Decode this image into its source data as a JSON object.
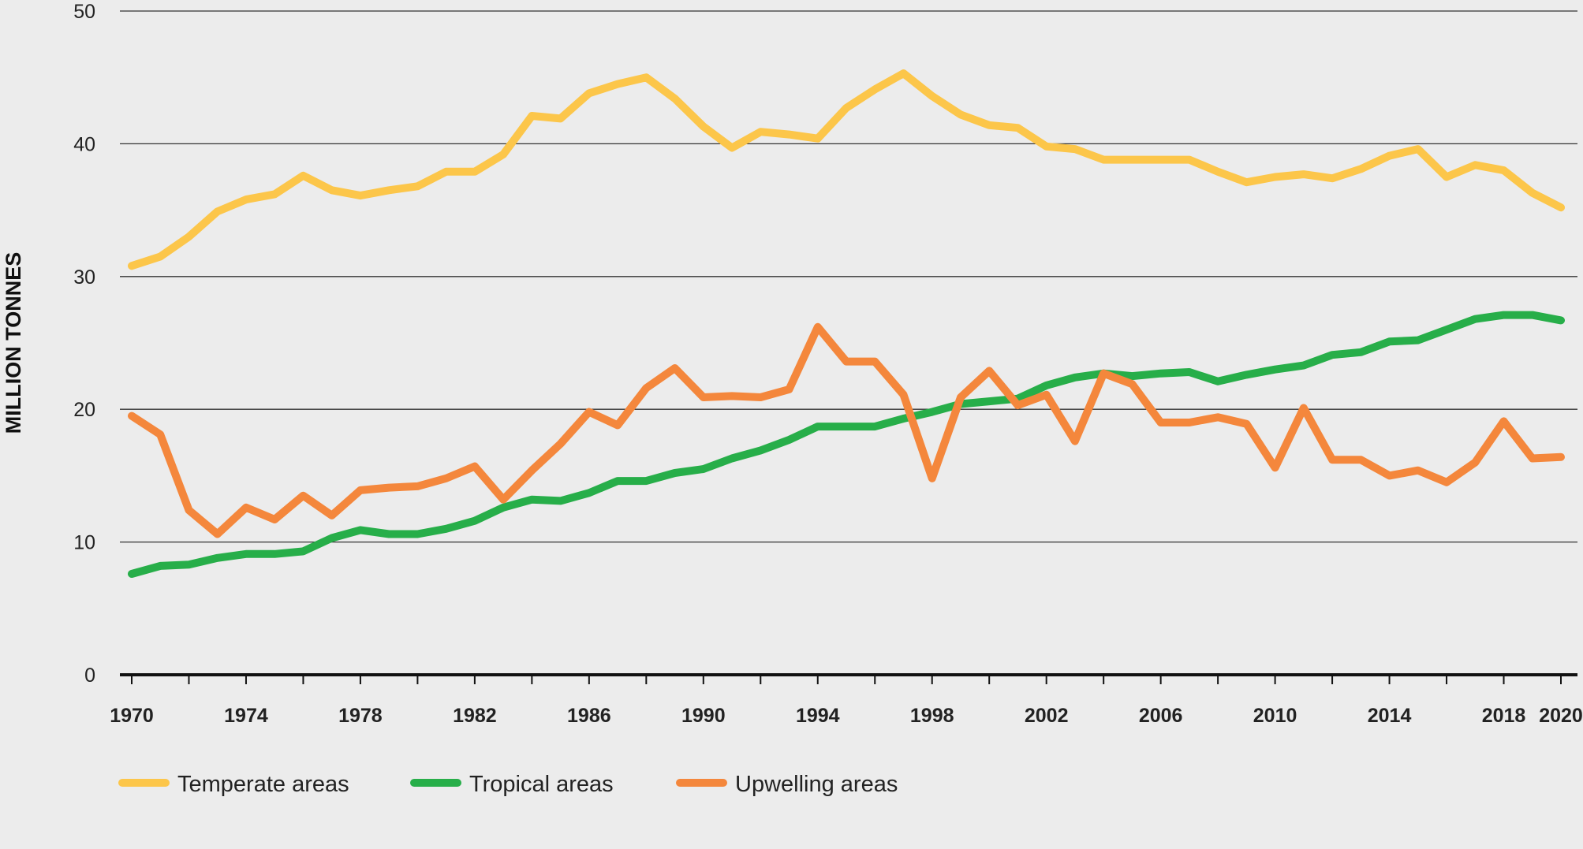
{
  "chart_data": {
    "type": "line",
    "title": "",
    "xlabel": "",
    "ylabel": "MILLION TONNES",
    "xlim": [
      1970,
      2020
    ],
    "ylim": [
      0,
      50
    ],
    "y_ticks": [
      0,
      10,
      20,
      30,
      40,
      50
    ],
    "x_tick_labels": [
      "1970",
      "1974",
      "1978",
      "1982",
      "1986",
      "1990",
      "1994",
      "1998",
      "2002",
      "2006",
      "2010",
      "2014",
      "2018",
      "2020"
    ],
    "grid": "horizontal",
    "legend_position": "bottom-left",
    "x": [
      1970,
      1971,
      1972,
      1973,
      1974,
      1975,
      1976,
      1977,
      1978,
      1979,
      1980,
      1981,
      1982,
      1983,
      1984,
      1985,
      1986,
      1987,
      1988,
      1989,
      1990,
      1991,
      1992,
      1993,
      1994,
      1995,
      1996,
      1997,
      1998,
      1999,
      2000,
      2001,
      2002,
      2003,
      2004,
      2005,
      2006,
      2007,
      2008,
      2009,
      2010,
      2011,
      2012,
      2013,
      2014,
      2015,
      2016,
      2017,
      2018,
      2019,
      2020
    ],
    "series": [
      {
        "name": "Temperate areas",
        "color": "#fcc64a",
        "values": [
          30.8,
          31.5,
          33.0,
          34.9,
          35.8,
          36.2,
          37.6,
          36.5,
          36.1,
          36.5,
          36.8,
          37.9,
          37.9,
          39.2,
          42.1,
          41.9,
          43.8,
          44.5,
          45.0,
          43.4,
          41.3,
          39.7,
          40.9,
          40.7,
          40.4,
          42.7,
          44.1,
          45.3,
          43.6,
          42.2,
          41.4,
          41.2,
          39.8,
          39.6,
          38.8,
          38.8,
          38.8,
          38.8,
          37.9,
          37.1,
          37.5,
          37.7,
          37.4,
          38.1,
          39.1,
          39.6,
          37.5,
          38.4,
          38.0,
          36.3,
          35.2
        ]
      },
      {
        "name": "Tropical areas",
        "color": "#27ae49",
        "values": [
          7.6,
          8.2,
          8.3,
          8.8,
          9.1,
          9.1,
          9.3,
          10.3,
          10.9,
          10.6,
          10.6,
          11.0,
          11.6,
          12.6,
          13.2,
          13.1,
          13.7,
          14.6,
          14.6,
          15.2,
          15.5,
          16.3,
          16.9,
          17.7,
          18.7,
          18.7,
          18.7,
          19.3,
          19.8,
          20.4,
          20.6,
          20.8,
          21.8,
          22.4,
          22.7,
          22.5,
          22.7,
          22.8,
          22.1,
          22.6,
          23.0,
          23.3,
          24.1,
          24.3,
          25.1,
          25.2,
          26.0,
          26.8,
          27.1,
          27.1,
          26.7
        ]
      },
      {
        "name": "Upwelling areas",
        "color": "#f4873c",
        "values": [
          19.5,
          18.1,
          12.4,
          10.6,
          12.6,
          11.7,
          13.5,
          12.0,
          13.9,
          14.1,
          14.2,
          14.8,
          15.7,
          13.2,
          15.4,
          17.4,
          19.8,
          18.8,
          21.6,
          23.1,
          20.9,
          21.0,
          20.9,
          21.5,
          26.2,
          23.6,
          23.6,
          21.1,
          14.8,
          20.9,
          22.9,
          20.3,
          21.1,
          17.6,
          22.7,
          21.9,
          19.0,
          19.0,
          19.4,
          18.9,
          15.6,
          20.1,
          16.2,
          16.2,
          15.0,
          15.4,
          14.5,
          16.0,
          19.1,
          16.3,
          16.4
        ]
      }
    ]
  }
}
